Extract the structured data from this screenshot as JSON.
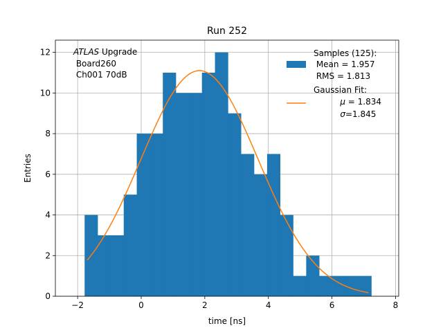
{
  "chart_data": {
    "type": "histogram",
    "title": "Run 252",
    "xlabel": "time [ns]",
    "ylabel": "Entries",
    "xlim": [
      -2.7,
      8.1
    ],
    "ylim": [
      0,
      12.6
    ],
    "grid": true,
    "xticks": [
      "−2",
      "0",
      "2",
      "4",
      "6",
      "8"
    ],
    "xtick_values": [
      -2,
      0,
      2,
      4,
      6,
      8
    ],
    "yticks": [
      "0",
      "2",
      "4",
      "6",
      "8",
      "10",
      "12"
    ],
    "ytick_values": [
      0,
      2,
      4,
      6,
      8,
      10,
      12
    ],
    "bins": {
      "edges": [
        -1.78,
        -1.37,
        -0.96,
        -0.55,
        -0.14,
        0.27,
        0.68,
        1.09,
        1.5,
        1.91,
        2.32,
        2.73,
        3.14,
        3.55,
        3.96,
        4.37,
        4.78,
        5.19,
        5.6,
        6.01,
        6.42,
        6.83,
        7.24
      ],
      "counts": [
        4,
        3,
        3,
        5,
        8,
        8,
        11,
        10,
        10,
        11,
        12,
        9,
        7,
        6,
        7,
        4,
        1,
        2,
        1,
        1,
        1,
        1
      ],
      "color": "#1f77b4"
    },
    "fit": {
      "type": "gaussian",
      "amplitude": 11.1,
      "mu": 1.834,
      "sigma": 1.845,
      "x_range": [
        -1.7,
        7.15
      ],
      "color": "#ff7f0e"
    },
    "annotation": {
      "italic": "ATLAS",
      "rest": " Upgrade",
      "line2": " Board260",
      "line3": " Ch001 70dB"
    },
    "legend": {
      "placement": "top-right",
      "samples": [
        "Samples (125):",
        " Mean = 1.957",
        " RMS = 1.813"
      ],
      "fit_title": "Gaussian Fit:",
      "fit_mu_symbol": "μ",
      "fit_mu_value": " = 1.834",
      "fit_sigma_symbol": "σ",
      "fit_sigma_value": "=1.845"
    }
  }
}
